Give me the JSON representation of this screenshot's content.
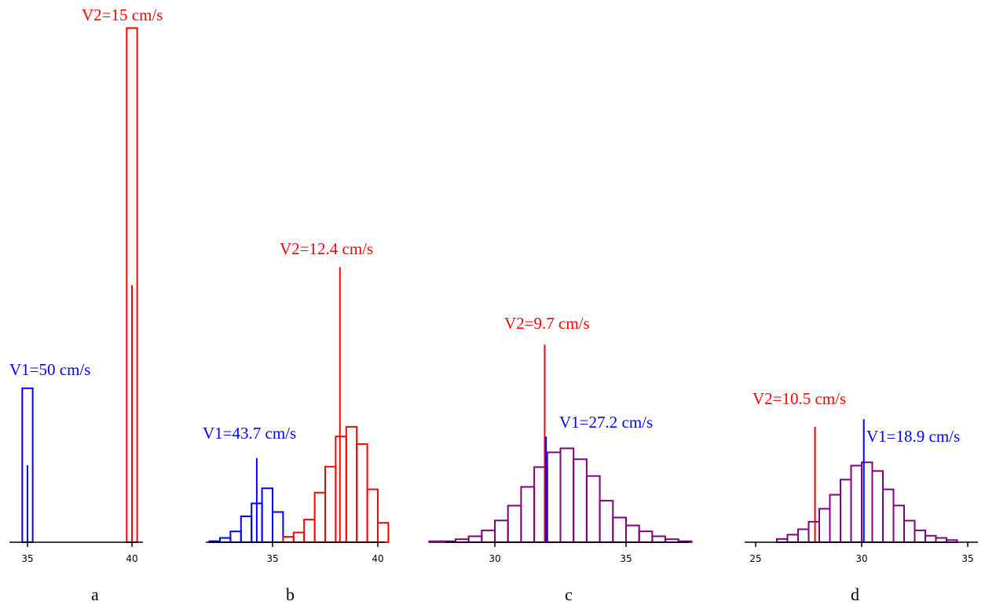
{
  "chart_data": [
    {
      "type": "bar",
      "panel_label": "a",
      "xticks": [
        35,
        40
      ],
      "series": [
        {
          "color": "#0000ff",
          "bins": [
            {
              "x0": 34.75,
              "x1": 35.25,
              "count": 100
            }
          ]
        },
        {
          "color": "#ff0000",
          "bins": [
            {
              "x0": 39.75,
              "x1": 40.25,
              "count": 334
            }
          ]
        }
      ],
      "markers": [
        {
          "x": 35.0,
          "height": 50,
          "color": "#0000ff"
        },
        {
          "x": 40.0,
          "height": 167,
          "color": "#ff0000"
        }
      ],
      "annotations": [
        {
          "text": "V1=50 cm/s",
          "color": "#0000ff"
        },
        {
          "text": "V2=15 cm/s",
          "color": "#ff0000"
        }
      ]
    },
    {
      "type": "bar",
      "panel_label": "b",
      "xticks": [
        35,
        40
      ],
      "series": [
        {
          "color": "#0000ff",
          "bins": [
            {
              "x0": 32.0,
              "x1": 32.5,
              "count": 1
            },
            {
              "x0": 32.5,
              "x1": 33.0,
              "count": 4
            },
            {
              "x0": 33.0,
              "x1": 33.5,
              "count": 10
            },
            {
              "x0": 33.5,
              "x1": 34.0,
              "count": 24
            },
            {
              "x0": 34.0,
              "x1": 34.5,
              "count": 36
            },
            {
              "x0": 34.5,
              "x1": 35.0,
              "count": 50
            },
            {
              "x0": 35.0,
              "x1": 35.5,
              "count": 28
            }
          ]
        },
        {
          "color": "#ff0000",
          "bins": [
            {
              "x0": 35.5,
              "x1": 36.0,
              "count": 5
            },
            {
              "x0": 36.0,
              "x1": 36.5,
              "count": 9
            },
            {
              "x0": 36.5,
              "x1": 37.0,
              "count": 21
            },
            {
              "x0": 37.0,
              "x1": 37.5,
              "count": 46
            },
            {
              "x0": 37.5,
              "x1": 38.0,
              "count": 70
            },
            {
              "x0": 38.0,
              "x1": 38.5,
              "count": 98
            },
            {
              "x0": 38.5,
              "x1": 39.0,
              "count": 107
            },
            {
              "x0": 39.0,
              "x1": 39.5,
              "count": 91
            },
            {
              "x0": 39.5,
              "x1": 40.0,
              "count": 49
            },
            {
              "x0": 40.0,
              "x1": 40.5,
              "count": 18
            }
          ]
        }
      ],
      "markers": [
        {
          "x": 34.25,
          "height": 78,
          "color": "#0000ff"
        },
        {
          "x": 38.2,
          "height": 255,
          "color": "#ff0000"
        }
      ],
      "annotations": [
        {
          "text": "V1=43.7 cm/s",
          "color": "#0000ff"
        },
        {
          "text": "V2=12.4 cm/s",
          "color": "#ff0000"
        }
      ]
    },
    {
      "type": "bar",
      "panel_label": "c",
      "xticks": [
        30,
        35
      ],
      "series": [
        {
          "color": "#800080",
          "bins": [
            {
              "x0": 27.5,
              "x1": 28.0,
              "count": 1
            },
            {
              "x0": 28.0,
              "x1": 28.5,
              "count": 1
            },
            {
              "x0": 28.5,
              "x1": 29.0,
              "count": 3
            },
            {
              "x0": 29.0,
              "x1": 29.5,
              "count": 6
            },
            {
              "x0": 29.5,
              "x1": 30.0,
              "count": 12
            },
            {
              "x0": 30.0,
              "x1": 30.5,
              "count": 22
            },
            {
              "x0": 30.5,
              "x1": 31.0,
              "count": 37
            },
            {
              "x0": 31.0,
              "x1": 31.5,
              "count": 56
            },
            {
              "x0": 31.5,
              "x1": 32.0,
              "count": 76
            },
            {
              "x0": 32.0,
              "x1": 32.5,
              "count": 91
            },
            {
              "x0": 32.5,
              "x1": 33.0,
              "count": 95
            },
            {
              "x0": 33.0,
              "x1": 33.5,
              "count": 84
            },
            {
              "x0": 33.5,
              "x1": 34.0,
              "count": 67
            },
            {
              "x0": 34.0,
              "x1": 34.5,
              "count": 42
            },
            {
              "x0": 34.5,
              "x1": 35.0,
              "count": 25
            },
            {
              "x0": 35.0,
              "x1": 35.5,
              "count": 17
            },
            {
              "x0": 35.5,
              "x1": 36.0,
              "count": 11
            },
            {
              "x0": 36.0,
              "x1": 36.5,
              "count": 6
            },
            {
              "x0": 36.5,
              "x1": 37.0,
              "count": 3
            },
            {
              "x0": 37.0,
              "x1": 37.5,
              "count": 1
            }
          ]
        }
      ],
      "markers": [
        {
          "x": 31.9,
          "height": 200,
          "color": "#ff0000"
        },
        {
          "x": 31.95,
          "height": 107,
          "color": "#0000ff"
        }
      ],
      "annotations": [
        {
          "text": "V2=9.7 cm/s",
          "color": "#ff0000"
        },
        {
          "text": "V1=27.2 cm/s",
          "color": "#0000ff"
        }
      ]
    },
    {
      "type": "bar",
      "panel_label": "d",
      "xticks": [
        25,
        30,
        35
      ],
      "series": [
        {
          "color": "#800080",
          "bins": [
            {
              "x0": 26.0,
              "x1": 26.5,
              "count": 3
            },
            {
              "x0": 26.5,
              "x1": 27.0,
              "count": 7
            },
            {
              "x0": 27.0,
              "x1": 27.5,
              "count": 12
            },
            {
              "x0": 27.5,
              "x1": 28.0,
              "count": 19
            },
            {
              "x0": 28.0,
              "x1": 28.5,
              "count": 31
            },
            {
              "x0": 28.5,
              "x1": 29.0,
              "count": 44
            },
            {
              "x0": 29.0,
              "x1": 29.5,
              "count": 58
            },
            {
              "x0": 29.5,
              "x1": 30.0,
              "count": 71
            },
            {
              "x0": 30.0,
              "x1": 30.5,
              "count": 74
            },
            {
              "x0": 30.5,
              "x1": 31.0,
              "count": 66
            },
            {
              "x0": 31.0,
              "x1": 31.5,
              "count": 49
            },
            {
              "x0": 31.5,
              "x1": 32.0,
              "count": 34
            },
            {
              "x0": 32.0,
              "x1": 32.5,
              "count": 20
            },
            {
              "x0": 32.5,
              "x1": 33.0,
              "count": 11
            },
            {
              "x0": 33.0,
              "x1": 33.5,
              "count": 6
            },
            {
              "x0": 33.5,
              "x1": 34.0,
              "count": 4
            },
            {
              "x0": 34.0,
              "x1": 34.5,
              "count": 2
            }
          ]
        }
      ],
      "markers": [
        {
          "x": 27.8,
          "height": 107,
          "color": "#ff0000"
        },
        {
          "x": 30.1,
          "height": 114,
          "color": "#0000ff"
        }
      ],
      "annotations": [
        {
          "text": "V2=10.5 cm/s",
          "color": "#ff0000"
        },
        {
          "text": "V1=18.9 cm/s",
          "color": "#0000ff"
        }
      ]
    }
  ]
}
